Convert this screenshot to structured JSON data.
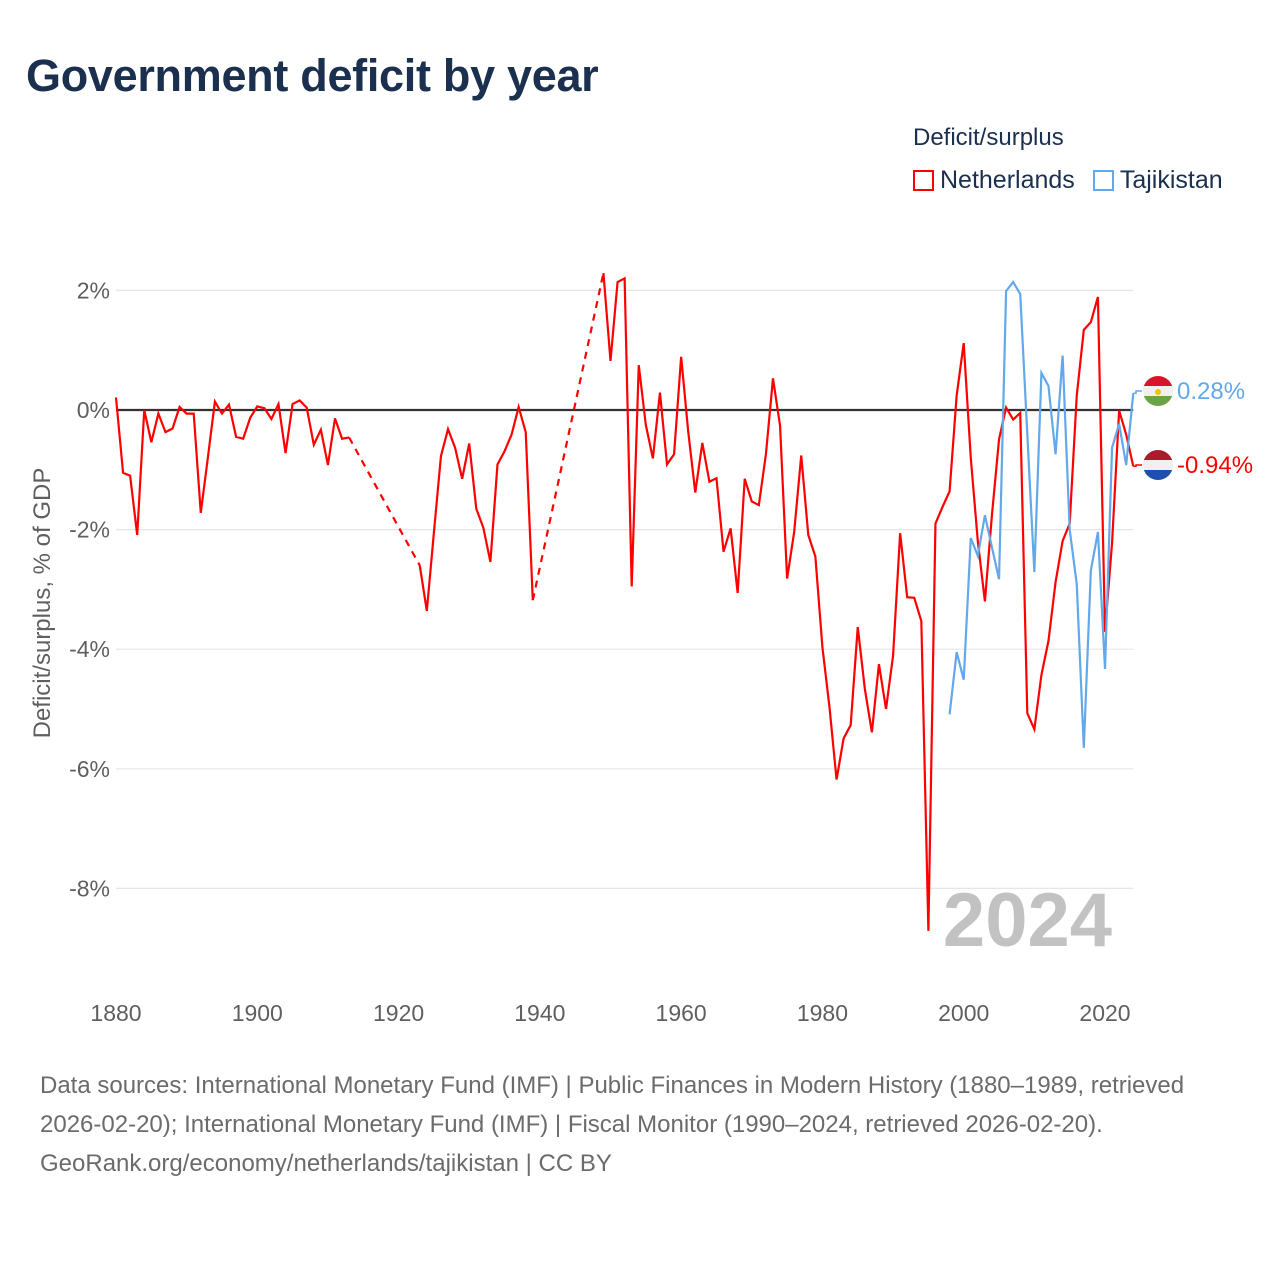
{
  "title": "Government deficit by year",
  "legend": {
    "title": "Deficit/surplus",
    "items": [
      {
        "name": "Netherlands",
        "color": "#ff0000"
      },
      {
        "name": "Tajikistan",
        "color": "#63a8ea"
      }
    ]
  },
  "footer": {
    "sources": "Data sources: International Monetary Fund (IMF) | Public Finances in Modern History (1880–1989, retrieved 2026-02-20); International Monetary Fund (IMF) | Fiscal Monitor (1990–2024, retrieved 2026-02-20).",
    "credit": "GeoRank.org/economy/netherlands/tajikistan | CC BY"
  },
  "chart_data": {
    "type": "line",
    "title": "Government deficit by year",
    "xlabel": "",
    "ylabel": "Deficit/surplus, % of GDP",
    "xlim": [
      1880,
      2024
    ],
    "ylim": [
      -9.5,
      2.5
    ],
    "x_ticks": [
      1880,
      1900,
      1920,
      1940,
      1960,
      1980,
      2000,
      2020
    ],
    "x_tick_labels": [
      "1880",
      "1900",
      "1920",
      "1940",
      "1960",
      "1980",
      "2000",
      "2020"
    ],
    "y_ticks": [
      2,
      0,
      -2,
      -4,
      -6,
      -8
    ],
    "y_tick_labels": [
      "2%",
      "0%",
      "-2%",
      "-4%",
      "-6%",
      "-8%"
    ],
    "grid": true,
    "legend_position": "top-right",
    "current_year_label": "2024",
    "series": [
      {
        "name": "Netherlands",
        "color": "#ff0000",
        "x_start": 1880,
        "end_label": "-0.94%",
        "flag": "netherlands-flag",
        "values": [
          0.21,
          -1.05,
          -1.1,
          -2.09,
          0,
          -0.54,
          -0.06,
          -0.37,
          -0.31,
          0.05,
          -0.06,
          -0.06,
          -1.72,
          -0.8,
          0.14,
          -0.06,
          0.09,
          -0.45,
          -0.48,
          -0.13,
          0.06,
          0.03,
          -0.15,
          0.1,
          -0.72,
          0.1,
          0.16,
          0.04,
          -0.58,
          -0.33,
          -0.92,
          -0.14,
          -0.48,
          -0.46,
          null,
          null,
          null,
          null,
          null,
          null,
          null,
          null,
          null,
          -2.6,
          -3.36,
          -2.05,
          -0.77,
          -0.32,
          -0.63,
          -1.15,
          -0.56,
          -1.65,
          -1.97,
          -2.54,
          -0.91,
          -0.69,
          -0.41,
          0.05,
          -0.37,
          -3.18,
          null,
          null,
          null,
          null,
          null,
          null,
          null,
          null,
          null,
          2.29,
          0.82,
          2.14,
          2.2,
          -2.95,
          0.75,
          -0.25,
          -0.81,
          0.29,
          -0.91,
          -0.74,
          0.89,
          -0.36,
          -1.38,
          -0.55,
          -1.2,
          -1.14,
          -2.37,
          -1.98,
          -3.06,
          -1.15,
          -1.53,
          -1.59,
          -0.74,
          0.53,
          -0.26,
          -2.82,
          -2.04,
          -0.76,
          -2.09,
          -2.45,
          -3.97,
          -4.97,
          -6.18,
          -5.49,
          -5.27,
          -3.63,
          -4.66,
          -5.39,
          -4.25,
          -5.0,
          -4.11,
          -2.06,
          -3.13,
          -3.14,
          -3.53,
          -8.71,
          -1.9,
          -1.62,
          -1.36,
          0.24,
          1.12,
          -0.8,
          -2.2,
          -3.2,
          -1.75,
          -0.49,
          0.04,
          -0.16,
          -0.05,
          -5.07,
          -5.34,
          -4.43,
          -3.86,
          -2.88,
          -2.19,
          -1.9,
          0.24,
          1.34,
          1.47,
          1.89,
          -3.71,
          -2.22,
          -0.01,
          -0.41,
          -0.94
        ]
      },
      {
        "name": "Tajikistan",
        "color": "#63a8ea",
        "x_start": 1998,
        "end_label": "0.28%",
        "flag": "tajikistan-flag",
        "values": [
          -5.09,
          -4.05,
          -4.51,
          -2.14,
          -2.44,
          -1.76,
          -2.3,
          -2.83,
          1.99,
          2.14,
          1.94,
          -0.4,
          -2.71,
          0.62,
          0.4,
          -0.74,
          0.91,
          -2.0,
          -2.91,
          -5.65,
          -2.68,
          -2.04,
          -4.33,
          -0.63,
          -0.23,
          -0.92,
          0.28
        ]
      }
    ]
  }
}
